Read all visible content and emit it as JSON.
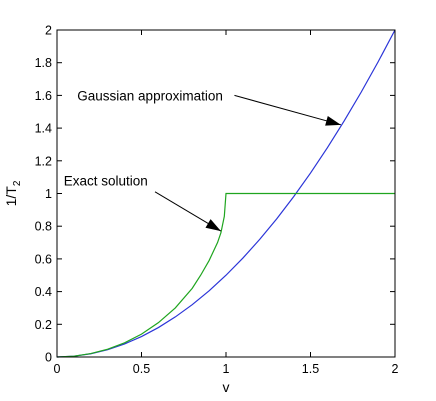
{
  "chart_data": {
    "type": "line",
    "title": "",
    "xlabel": "v",
    "ylabel_main": "1/T",
    "ylabel_sub": "2",
    "xlim": [
      0,
      2
    ],
    "ylim": [
      0,
      2
    ],
    "grid": false,
    "xticks": [
      0,
      0.5,
      1,
      1.5,
      2
    ],
    "xtick_labels": [
      "0",
      "0.5",
      "1",
      "1.5",
      "2"
    ],
    "yticks": [
      0,
      0.2,
      0.4,
      0.6,
      0.8,
      1,
      1.2,
      1.4,
      1.6,
      1.8,
      2
    ],
    "ytick_labels": [
      "0",
      "0.2",
      "0.4",
      "0.6",
      "0.8",
      "1",
      "1.2",
      "1.4",
      "1.6",
      "1.8",
      "2"
    ],
    "series": [
      {
        "color": "#2b35d8",
        "x": [
          0,
          0.1,
          0.2,
          0.3,
          0.4,
          0.5,
          0.6,
          0.7,
          0.8,
          0.9,
          1.0,
          1.1,
          1.2,
          1.3,
          1.4,
          1.5,
          1.6,
          1.7,
          1.8,
          1.9,
          2.0
        ],
        "y": [
          0,
          0.005,
          0.02,
          0.045,
          0.08,
          0.125,
          0.18,
          0.245,
          0.32,
          0.405,
          0.5,
          0.605,
          0.72,
          0.845,
          0.98,
          1.125,
          1.28,
          1.445,
          1.62,
          1.805,
          2.0
        ]
      },
      {
        "color": "#1fa51f",
        "x": [
          0,
          0.1,
          0.2,
          0.3,
          0.4,
          0.5,
          0.6,
          0.7,
          0.8,
          0.85,
          0.9,
          0.95,
          0.97,
          0.99,
          1.0,
          1.0,
          1.5,
          2.0
        ],
        "y": [
          0,
          0.005,
          0.021,
          0.048,
          0.087,
          0.14,
          0.21,
          0.3,
          0.42,
          0.5,
          0.59,
          0.7,
          0.76,
          0.86,
          1.0,
          1.0,
          1.0,
          1.0
        ]
      }
    ],
    "annotations": [
      {
        "text": "Gaussian approximation",
        "text_x": 0.12,
        "text_y": 1.6,
        "arrow_from": [
          1.05,
          1.6
        ],
        "arrow_to": [
          1.68,
          1.42
        ]
      },
      {
        "text": "Exact solution",
        "text_x": 0.04,
        "text_y": 1.08,
        "arrow_from": [
          0.58,
          1.01
        ],
        "arrow_to": [
          0.97,
          0.77
        ]
      }
    ]
  }
}
